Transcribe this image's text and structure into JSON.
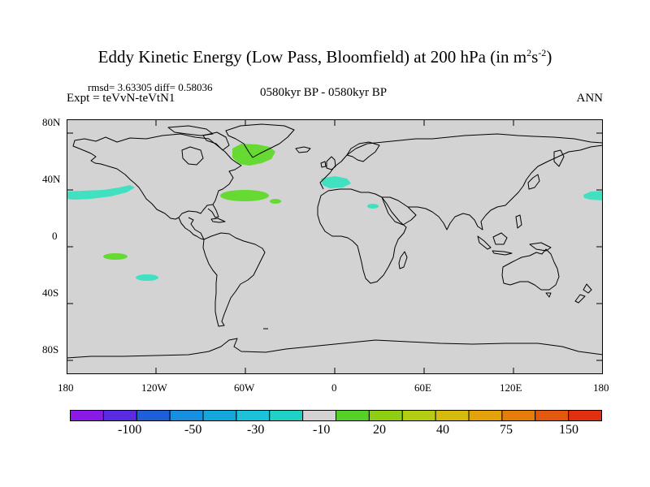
{
  "title": {
    "main": "Eddy Kinetic Energy (Low Pass, Bloomfield) at 200 hPa (in m",
    "sup1": "2",
    "mid": "s",
    "sup2": "-2",
    "end": ")"
  },
  "stats_line": "rmsd= 3.63305  diff= 0.58036",
  "expt_line": "Expt = teVvN-teVtN1",
  "period_line": "0580kyr BP - 0580kyr BP",
  "season": "ANN",
  "map": {
    "projection": "cylindrical-equidistant",
    "background_color": "#d3d3d3",
    "lat_ticks": [
      "80N",
      "40N",
      "0",
      "40S",
      "80S"
    ],
    "lon_ticks": [
      "180",
      "120W",
      "60W",
      "0",
      "60E",
      "120E",
      "180"
    ]
  },
  "anomaly_regions": [
    {
      "name": "north-pacific-west",
      "sign": "negative",
      "color": "#40e0c0"
    },
    {
      "name": "labrador-sea",
      "sign": "positive",
      "color": "#66d933"
    },
    {
      "name": "north-atlantic",
      "sign": "positive",
      "color": "#66d933"
    },
    {
      "name": "north-atlantic-small",
      "sign": "positive",
      "color": "#66d933"
    },
    {
      "name": "mediterranean",
      "sign": "negative",
      "color": "#40e0c0"
    },
    {
      "name": "north-africa",
      "sign": "negative",
      "color": "#40e0c0"
    },
    {
      "name": "north-pacific-east",
      "sign": "negative",
      "color": "#40e0c0"
    },
    {
      "name": "south-pacific-green",
      "sign": "positive",
      "color": "#66d933"
    },
    {
      "name": "south-pacific-cyan",
      "sign": "negative",
      "color": "#40e0c0"
    }
  ],
  "colorbar": {
    "colors": [
      "#8b1ae6",
      "#5a2be0",
      "#1f5fd9",
      "#168fe0",
      "#14a7de",
      "#1bc2da",
      "#20d2c3",
      "#d3d3d3",
      "#54d126",
      "#8ecf14",
      "#b6cc12",
      "#d6bb0e",
      "#e3a20a",
      "#e67d0b",
      "#e3580e",
      "#e0300f"
    ],
    "labels": [
      "-100",
      "-50",
      "-30",
      "-10",
      "20",
      "40",
      "75",
      "150"
    ]
  }
}
